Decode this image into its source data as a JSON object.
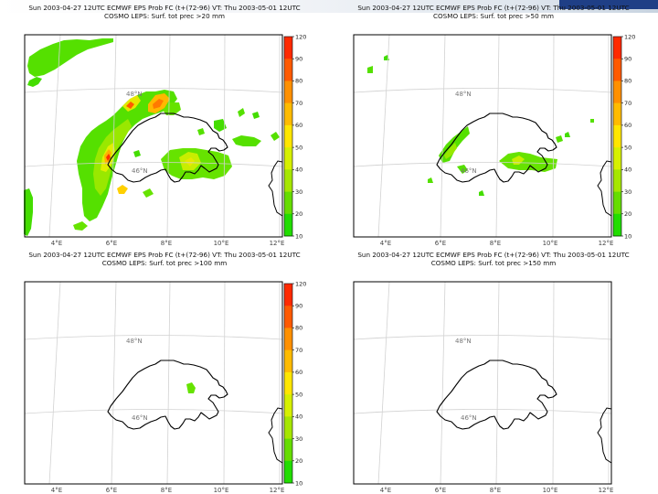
{
  "header": {
    "logo": "ECMWF logo band"
  },
  "panels": [
    {
      "id": "p20",
      "title_line1": "Sun 2003-04-27 12UTC ECMWF EPS Prob FC (t+(72-96) VT: Thu 2003-05-01 12UTC",
      "title_line2": "COSMO LEPS: Surf. tot prec >20 mm",
      "show_colorbar": true
    },
    {
      "id": "p50",
      "title_line1": "Sun 2003-04-27 12UTC ECMWF EPS Prob FC (t+(72-96) VT: Thu 2003-05-01 12UTC",
      "title_line2": "COSMO LEPS: Surf. tot prec >50 mm",
      "show_colorbar": true
    },
    {
      "id": "p100",
      "title_line1": "Sun 2003-04-27 12UTC ECMWF EPS Prob FC (t+(72-96) VT: Thu 2003-05-01 12UTC",
      "title_line2": "COSMO LEPS: Surf. tot prec >100 mm",
      "show_colorbar": true
    },
    {
      "id": "p150",
      "title_line1": "Sun 2003-04-27 12UTC ECMWF EPS Prob FC (t+(72-96) VT: Thu 2003-05-01 12UTC",
      "title_line2": "COSMO LEPS: Surf. tot prec >150 mm",
      "show_colorbar": false
    }
  ],
  "map_labels": {
    "lat_top": "48°N",
    "lat_bottom": "46°N",
    "lon": [
      "4°E",
      "6°E",
      "8°E",
      "10°E",
      "12°E"
    ]
  },
  "colorbar": {
    "ticks": [
      "120",
      "90",
      "80",
      "70",
      "60",
      "50",
      "40",
      "30",
      "20",
      "10"
    ],
    "colors": [
      "#ff2a00",
      "#ff5a00",
      "#ff9000",
      "#ffbb00",
      "#ffe600",
      "#d6f000",
      "#a6e600",
      "#66dd00",
      "#22dd00"
    ]
  }
}
